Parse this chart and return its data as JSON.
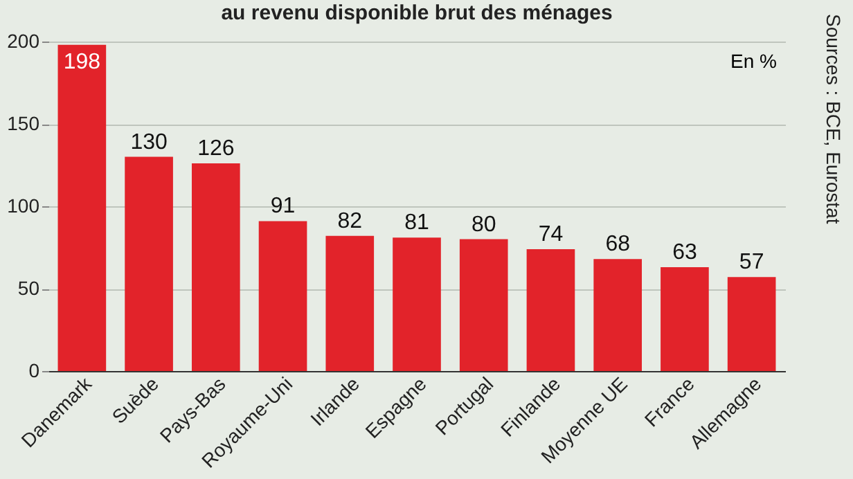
{
  "chart_data": {
    "type": "bar",
    "title": "au revenu disponible brut des ménages",
    "categories": [
      "Danemark",
      "Suède",
      "Pays-Bas",
      "Royaume-Uni",
      "Irlande",
      "Espagne",
      "Portugal",
      "Finlande",
      "Moyenne UE",
      "France",
      "Allemagne"
    ],
    "values": [
      198,
      130,
      126,
      91,
      82,
      81,
      80,
      74,
      68,
      63,
      57
    ],
    "color": "#e2232a",
    "ylim": [
      0,
      200
    ],
    "yticks": [
      0,
      50,
      100,
      150,
      200
    ],
    "grid": "y",
    "data_labels": true,
    "annotations": [
      "En %",
      "Sources : BCE, Eurostat"
    ]
  }
}
